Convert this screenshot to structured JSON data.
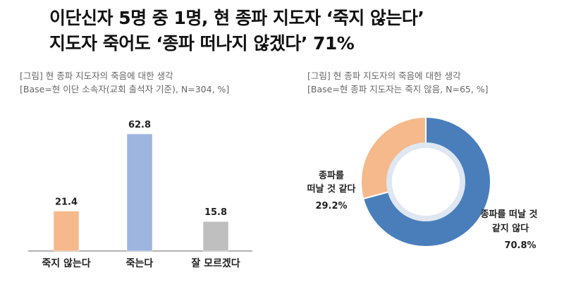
{
  "headline": {
    "line1": "이단신자 5명 중 1명, 현 종파 지도자 ‘죽지 않는다’",
    "line2": "지도자 죽어도 ‘종파 떠나지 않겠다’ 71%"
  },
  "colors": {
    "bar_died_not": "#F5B98B",
    "bar_dies": "#9DB5DF",
    "bar_unknown": "#BFBFBF",
    "donut_leave": "#F5B98B",
    "donut_stay": "#4A7EBB",
    "axis": "#999999"
  },
  "chart_data": [
    {
      "type": "bar",
      "caption_line1": "[그림] 현 종파 지도자의 죽음에 대한 생각",
      "caption_line2": "[Base=현 이단 소속자(교회 출석자 기준), N=304, %]",
      "categories": [
        "죽지 않는다",
        "죽는다",
        "잘 모르겠다"
      ],
      "values": [
        21.4,
        62.8,
        15.8
      ],
      "value_labels": [
        "21.4",
        "62.8",
        "15.8"
      ],
      "ylim": [
        0,
        62.8
      ]
    },
    {
      "type": "pie",
      "caption_line1": "[그림] 현 종파 지도자의 죽음에 대한 생각",
      "caption_line2": "[Base=현 종파 지도자는 죽지 않음, N=65, %]",
      "slices": [
        {
          "label_line1": "종파를",
          "label_line2": "떠날 것 같다",
          "value": 29.2,
          "value_label": "29.2%"
        },
        {
          "label_line1": "종파를 떠날 것",
          "label_line2": "같지 않다",
          "value": 70.8,
          "value_label": "70.8%"
        }
      ]
    }
  ]
}
